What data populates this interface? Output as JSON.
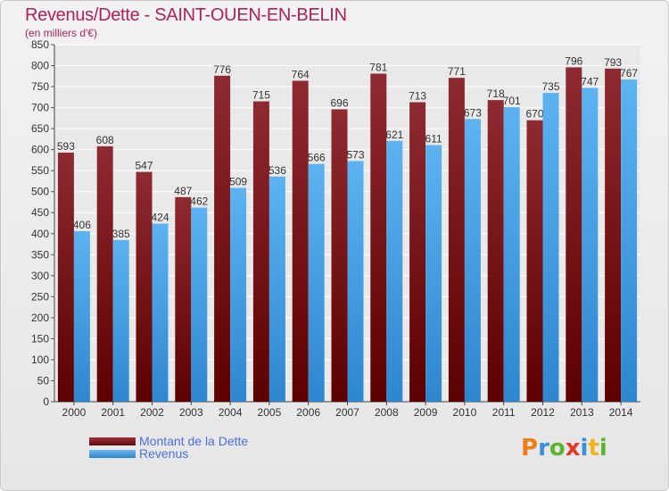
{
  "header": {
    "title": "Revenus/Dette - SAINT-OUEN-EN-BELIN",
    "subtitle": "(en milliers d'€)"
  },
  "logo_text": "Proxiti",
  "colors": {
    "dette": "#7a1f24",
    "revenus": "#4aa3e6",
    "title": "#b0205a"
  },
  "chart_data": {
    "type": "bar",
    "categories": [
      "2000",
      "2001",
      "2002",
      "2003",
      "2004",
      "2005",
      "2006",
      "2007",
      "2008",
      "2009",
      "2010",
      "2011",
      "2012",
      "2013",
      "2014"
    ],
    "series": [
      {
        "name": "Montant de la Dette",
        "values": [
          593,
          608,
          547,
          487,
          776,
          715,
          764,
          696,
          781,
          713,
          771,
          718,
          670,
          796,
          793
        ]
      },
      {
        "name": "Revenus",
        "values": [
          406,
          385,
          424,
          462,
          509,
          536,
          566,
          573,
          621,
          611,
          673,
          701,
          735,
          747,
          767
        ]
      }
    ],
    "ylim": [
      0,
      850
    ],
    "yticks": [
      0,
      50,
      100,
      150,
      200,
      250,
      300,
      350,
      400,
      450,
      500,
      550,
      600,
      650,
      700,
      750,
      800,
      850
    ],
    "grid": true,
    "legend": "bottom-left"
  }
}
